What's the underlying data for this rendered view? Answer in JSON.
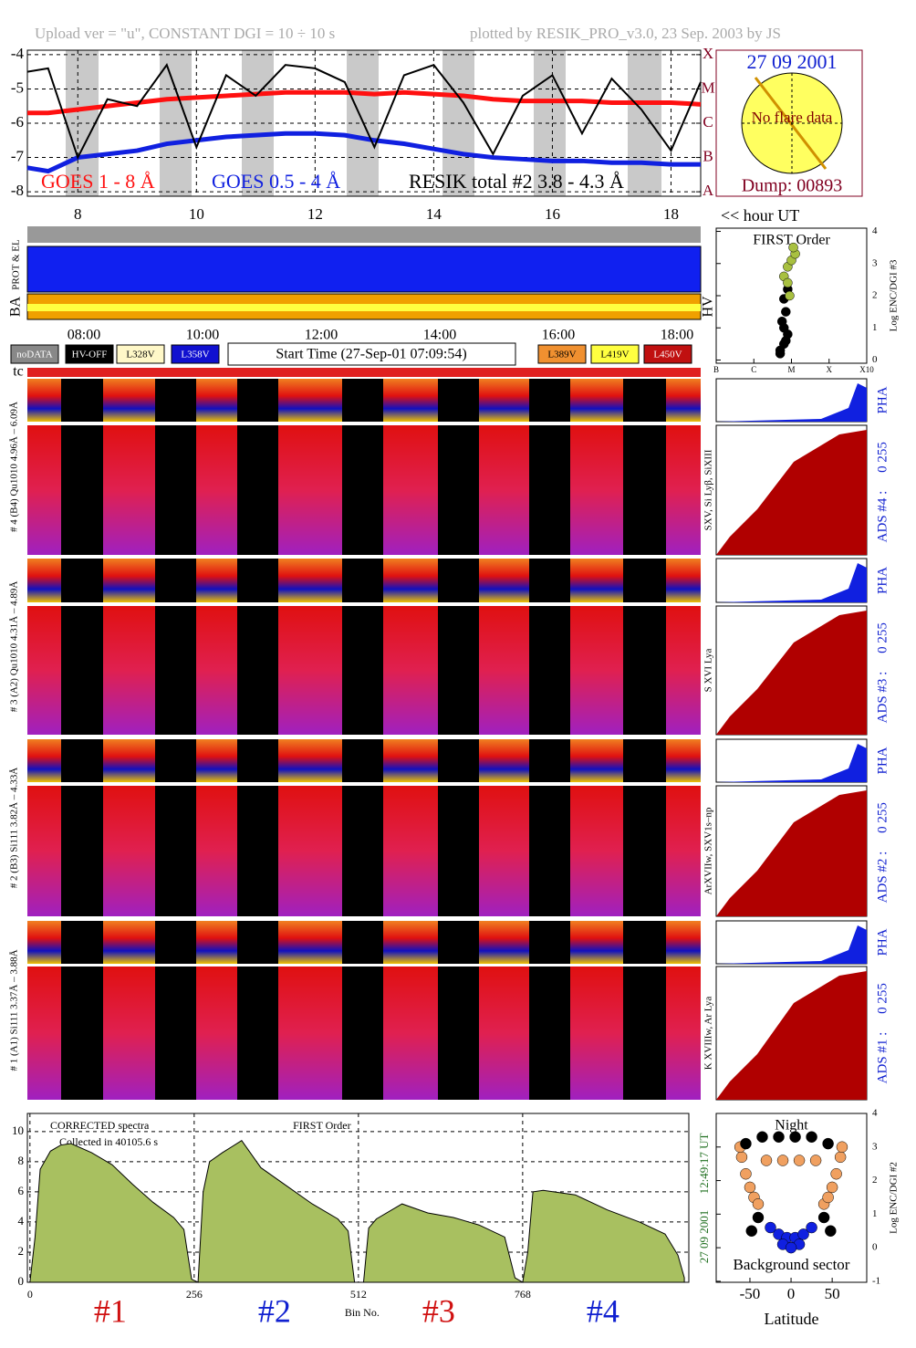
{
  "header": {
    "left": "Upload ver = \"u\", CONSTANT  DGI =  10 ÷  10 s",
    "right": "plotted by RESIK_PRO_v3.0, 23 Sep. 2003 by JS"
  },
  "inset": {
    "date": "27 09 2001",
    "message": "No flare data",
    "dump": "Dump: 00893"
  },
  "hour_axis_label": "<< hour UT",
  "strip_labels": {
    "prot": "PROT & EL",
    "ba": "BA",
    "hv": "HV",
    "tc": "tc"
  },
  "time_labels": [
    "08:00",
    "10:00",
    "12:00",
    "14:00",
    "16:00",
    "18:00"
  ],
  "legend_boxes": [
    {
      "label": "noDATA",
      "color": "#888888"
    },
    {
      "label": "HV-OFF",
      "color": "#000000"
    },
    {
      "label": "L328V",
      "color": "#fff8c8"
    },
    {
      "label": "L358V",
      "color": "#1010d0"
    },
    {
      "label": "L389V",
      "color": "#f09030"
    },
    {
      "label": "L419V",
      "color": "#ffff40"
    },
    {
      "label": "L450V",
      "color": "#c01010"
    }
  ],
  "start_time": "Start Time (27-Sep-01 07:09:54)",
  "panels": [
    {
      "left": "# 4 (B4) Qu1010 4.96Å – 6.09Å",
      "lines": "SXV, Si Lyβ, SiXIII",
      "pha": "PHA",
      "ads": "ADS #4 :",
      "range": "0 255"
    },
    {
      "left": "# 3 (A2) Qu1010 4.31Å – 4.89Å",
      "lines": "S XVI Lya",
      "pha": "PHA",
      "ads": "ADS #3 :",
      "range": "0 255"
    },
    {
      "left": "# 2 (B3) Si111 3.82Å – 4.33Å",
      "lines": "ArXVIIw, SXV1s–np",
      "pha": "PHA",
      "ads": "ADS #2 :",
      "range": "0 255"
    },
    {
      "left": "# 1 (A1) Si111 3.37Å – 3.88Å",
      "lines": "K XVIIIw, Ar Lya",
      "pha": "PHA",
      "ads": "ADS #1 :",
      "range": "0 255"
    }
  ],
  "chart_data": [
    {
      "type": "line",
      "xlim": [
        7.15,
        18.5
      ],
      "xticks": [
        8,
        10,
        12,
        14,
        16,
        18
      ],
      "ylim": [
        -8.13,
        -3.87
      ],
      "yticks": [
        -4,
        -5,
        -6,
        -7,
        -8
      ],
      "y2ticks": [
        {
          "value": -8,
          "label": "A"
        },
        {
          "value": -7,
          "label": "B"
        },
        {
          "value": -6,
          "label": "C"
        },
        {
          "value": -5,
          "label": "M"
        },
        {
          "value": -4,
          "label": "X"
        }
      ],
      "grid": true,
      "x": [
        7.15,
        7.5,
        8,
        8.5,
        9,
        9.5,
        10,
        10.5,
        11,
        11.5,
        12,
        12.5,
        13,
        13.5,
        14,
        14.5,
        15,
        15.5,
        16,
        16.5,
        17,
        17.5,
        18,
        18.5
      ],
      "series": [
        {
          "name": "GOES 1 - 8 Å",
          "color": "#ff1010",
          "values": [
            -5.7,
            -5.7,
            -5.6,
            -5.5,
            -5.4,
            -5.3,
            -5.25,
            -5.2,
            -5.15,
            -5.1,
            -5.1,
            -5.1,
            -5.15,
            -5.1,
            -5.15,
            -5.2,
            -5.3,
            -5.35,
            -5.35,
            -5.35,
            -5.4,
            -5.4,
            -5.4,
            -5.45
          ]
        },
        {
          "name": "GOES 0.5 - 4 Å",
          "color": "#1020e0",
          "values": [
            -7.3,
            -7.4,
            -7.0,
            -6.9,
            -6.8,
            -6.6,
            -6.5,
            -6.4,
            -6.35,
            -6.3,
            -6.3,
            -6.35,
            -6.5,
            -6.6,
            -6.75,
            -6.9,
            -7.0,
            -7.05,
            -7.1,
            -7.1,
            -7.15,
            -7.15,
            -7.2,
            -7.2
          ]
        },
        {
          "name": "RESIK total #2  3.8 - 4.3 Å",
          "color": "#000000",
          "values": [
            -4.5,
            -4.4,
            -7.0,
            -5.3,
            -5.5,
            -4.3,
            -6.7,
            -4.6,
            -5.2,
            -4.3,
            -4.4,
            -4.8,
            -6.7,
            -4.6,
            -4.3,
            -5.4,
            -6.9,
            -5.2,
            -4.6,
            -6.3,
            -4.7,
            -5.6,
            -6.8,
            -4.8
          ]
        }
      ]
    },
    {
      "type": "scatter",
      "title": "FIRST Order",
      "ylabel": "Log ENC/DGI #3",
      "xlim": [
        -7,
        -3
      ],
      "ylim": [
        -0.1,
        4.1
      ],
      "xticks": [
        {
          "value": -7,
          "label": "B"
        },
        {
          "value": -6,
          "label": "C"
        },
        {
          "value": -5,
          "label": "M"
        },
        {
          "value": -4,
          "label": "X"
        },
        {
          "value": -3,
          "label": "X10"
        }
      ],
      "yticks": [
        0,
        1,
        2,
        3,
        4
      ],
      "series": [
        {
          "color": "#000000",
          "x": [
            -5.3,
            -5.2,
            -5.1,
            -5.25,
            -5.15,
            -5.2,
            -5.3,
            -5.1,
            -5.2,
            -5.15
          ],
          "values": [
            0.3,
            0.5,
            0.8,
            1.2,
            1.5,
            1.9,
            0.2,
            2.2,
            1.0,
            0.6
          ]
        },
        {
          "color": "#a8c040",
          "x": [
            -5.2,
            -5.1,
            -5.0,
            -4.9,
            -5.1,
            -4.95,
            -5.05
          ],
          "values": [
            2.6,
            2.9,
            3.1,
            3.3,
            2.4,
            3.5,
            2.0
          ]
        }
      ]
    },
    {
      "type": "area",
      "title": "CORRECTED spectra",
      "subtitle": "Collected in 40105.6 s",
      "annotation": "FIRST Order",
      "xlabel": "Bin No.",
      "color": "#a8c060",
      "xlim": [
        -4,
        1027
      ],
      "xticks": [
        0,
        256,
        512,
        768
      ],
      "ylim": [
        0,
        11.2
      ],
      "yticks": [
        0,
        2,
        4,
        6,
        8,
        10
      ],
      "grid": true,
      "segments": [
        {
          "label": "#1",
          "color": "#d01010"
        },
        {
          "label": "#2",
          "color": "#1020d0"
        },
        {
          "label": "#3",
          "color": "#d01010"
        },
        {
          "label": "#4",
          "color": "#1020d0"
        }
      ],
      "timestamp": "12:49:17 UT",
      "date": "27 09 2001",
      "x": [
        0,
        8,
        16,
        32,
        48,
        64,
        96,
        128,
        160,
        192,
        224,
        240,
        252,
        262,
        270,
        280,
        300,
        330,
        360,
        400,
        440,
        480,
        496,
        506,
        520,
        528,
        540,
        580,
        620,
        660,
        700,
        740,
        756,
        768,
        776,
        784,
        800,
        850,
        900,
        950,
        990,
        1010,
        1020
      ],
      "values": [
        0,
        3,
        7.5,
        8.7,
        9.1,
        9.2,
        8.6,
        7.8,
        6.5,
        5.3,
        4.3,
        3.5,
        0.2,
        0,
        6,
        8,
        8.6,
        9.4,
        7.6,
        6.4,
        5.2,
        4.2,
        3.4,
        0,
        0,
        3.6,
        4.2,
        5.2,
        4.6,
        4.3,
        3.8,
        3,
        0.3,
        0,
        2,
        6,
        6.1,
        5.8,
        4.8,
        4,
        3.2,
        1.8,
        0.3
      ]
    },
    {
      "type": "scatter",
      "title": "Night",
      "subtitle": "Background sector",
      "xlabel": "Latitude",
      "ylabel": "Log ENC/DGI #2",
      "xlim": [
        -91,
        92
      ],
      "ylim": [
        -1.03,
        4.0
      ],
      "xticks": [
        -50,
        0,
        50
      ],
      "yticks": [
        -1,
        0,
        1,
        2,
        3,
        4
      ],
      "series": [
        {
          "color": "#f0a060",
          "x": [
            -60,
            -55,
            -50,
            -45,
            -40,
            40,
            45,
            50,
            55,
            60,
            -30,
            -10,
            10,
            30,
            -62,
            62
          ],
          "values": [
            2.7,
            2.2,
            1.8,
            1.5,
            1.3,
            1.3,
            1.5,
            1.8,
            2.2,
            2.7,
            2.6,
            2.6,
            2.6,
            2.6,
            3.0,
            3.0
          ]
        },
        {
          "color": "#000000",
          "x": [
            -55,
            -35,
            -15,
            5,
            25,
            45,
            -40,
            40,
            -48,
            48
          ],
          "values": [
            3.1,
            3.3,
            3.3,
            3.3,
            3.3,
            3.1,
            0.9,
            0.9,
            0.5,
            0.5
          ]
        },
        {
          "color": "#1020e0",
          "x": [
            -25,
            -15,
            -5,
            5,
            15,
            25,
            -10,
            10,
            0
          ],
          "values": [
            0.6,
            0.4,
            0.3,
            0.3,
            0.4,
            0.6,
            0.1,
            0.1,
            0.0
          ]
        }
      ]
    }
  ]
}
